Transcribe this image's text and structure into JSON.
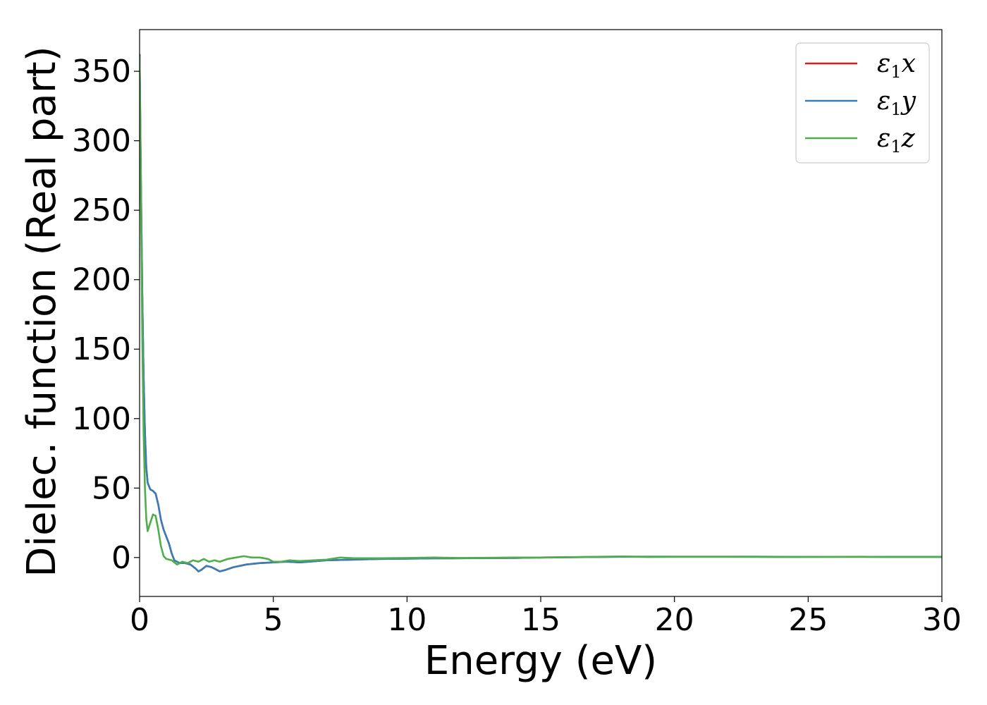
{
  "chart_data": {
    "type": "line",
    "title": "",
    "xlabel": "Energy (eV)",
    "ylabel": "Dielec. function (Real part)",
    "xlim": [
      0,
      30
    ],
    "ylim": [
      -28,
      380
    ],
    "xticks": [
      0,
      5,
      10,
      15,
      20,
      25,
      30
    ],
    "yticks": [
      0,
      50,
      100,
      150,
      200,
      250,
      300,
      350
    ],
    "grid": false,
    "legend_position": "top-right",
    "series": [
      {
        "name": "ε1x",
        "legend_symbol": "ε",
        "legend_sub": "1",
        "legend_suffix": "x",
        "color": "#e41a1c",
        "x": [
          0,
          0.05,
          0.1,
          0.15,
          0.2,
          0.25,
          0.3,
          0.4,
          0.5,
          0.6,
          0.7,
          0.8,
          0.9,
          1.0,
          1.1,
          1.2,
          1.3,
          1.4,
          1.5,
          1.7,
          1.9,
          2.1,
          2.2,
          2.3,
          2.5,
          2.7,
          2.9,
          3.0,
          3.2,
          3.5,
          4.0,
          4.5,
          5.0,
          5.5,
          6.0,
          7.0,
          8.0,
          9.0,
          10.0,
          11.0,
          12.0,
          13.0,
          14.0,
          15.0,
          16.0,
          17.0,
          18.0,
          19.0,
          20.0,
          21.0,
          22.0,
          23.0,
          24.0,
          25.0,
          26.0,
          27.0,
          28.0,
          29.0,
          30.0
        ],
        "y": [
          362,
          270,
          190,
          130,
          90,
          65,
          54,
          49,
          48,
          46,
          38,
          27,
          20,
          15,
          10,
          3,
          -2,
          -3,
          -4,
          -4,
          -5,
          -8,
          -10,
          -9,
          -6,
          -7,
          -9,
          -10,
          -9,
          -7,
          -5,
          -4,
          -3.5,
          -3,
          -3.5,
          -2,
          -1.5,
          -1,
          -0.8,
          -0.6,
          -0.5,
          -0.4,
          -0.3,
          0,
          0.2,
          0.4,
          0.6,
          0.6,
          0.6,
          0.6,
          0.6,
          0.6,
          0.5,
          0.5,
          0.5,
          0.5,
          0.5,
          0.5,
          0.5
        ]
      },
      {
        "name": "ε1y",
        "legend_symbol": "ε",
        "legend_sub": "1",
        "legend_suffix": "y",
        "color": "#377eb8",
        "x": [
          0,
          0.05,
          0.1,
          0.15,
          0.2,
          0.25,
          0.3,
          0.4,
          0.5,
          0.6,
          0.7,
          0.8,
          0.9,
          1.0,
          1.1,
          1.2,
          1.3,
          1.4,
          1.5,
          1.7,
          1.9,
          2.1,
          2.2,
          2.3,
          2.5,
          2.7,
          2.9,
          3.0,
          3.2,
          3.5,
          4.0,
          4.5,
          5.0,
          5.5,
          6.0,
          7.0,
          8.0,
          9.0,
          10.0,
          11.0,
          12.0,
          13.0,
          14.0,
          15.0,
          16.0,
          17.0,
          18.0,
          19.0,
          20.0,
          21.0,
          22.0,
          23.0,
          24.0,
          25.0,
          26.0,
          27.0,
          28.0,
          29.0,
          30.0
        ],
        "y": [
          362,
          270,
          190,
          130,
          90,
          65,
          54,
          49,
          48,
          46,
          38,
          27,
          20,
          15,
          10,
          3,
          -2,
          -3,
          -4,
          -4,
          -5,
          -8,
          -10,
          -9,
          -6,
          -7,
          -9,
          -10,
          -9,
          -7,
          -5,
          -4,
          -3.5,
          -3,
          -3.5,
          -2,
          -1.5,
          -1,
          -0.8,
          -0.6,
          -0.5,
          -0.4,
          -0.3,
          0,
          0.2,
          0.4,
          0.6,
          0.6,
          0.6,
          0.6,
          0.6,
          0.6,
          0.5,
          0.5,
          0.5,
          0.5,
          0.5,
          0.5,
          0.5
        ]
      },
      {
        "name": "ε1z",
        "legend_symbol": "ε",
        "legend_sub": "1",
        "legend_suffix": "z",
        "color": "#4daf4a",
        "x": [
          0,
          0.05,
          0.1,
          0.15,
          0.2,
          0.25,
          0.3,
          0.4,
          0.5,
          0.6,
          0.7,
          0.8,
          0.9,
          1.0,
          1.2,
          1.4,
          1.6,
          1.8,
          2.0,
          2.2,
          2.4,
          2.6,
          2.8,
          3.0,
          3.3,
          3.6,
          3.9,
          4.2,
          4.5,
          4.8,
          5.0,
          5.3,
          5.6,
          6.0,
          6.5,
          7.0,
          7.5,
          8.0,
          9.0,
          10.0,
          11.0,
          12.0,
          13.0,
          14.0,
          15.0,
          16.0,
          17.0,
          18.0,
          19.0,
          20.0,
          22.0,
          24.0,
          26.0,
          27.0,
          28.0,
          30.0
        ],
        "y": [
          360,
          260,
          160,
          90,
          50,
          28,
          19,
          25,
          31,
          30,
          20,
          8,
          1,
          -1,
          -2,
          -5,
          -3,
          -4,
          -2,
          -3,
          -1,
          -3,
          -2,
          -3,
          -1,
          0,
          1,
          0,
          0,
          -1,
          -3,
          -3,
          -2,
          -2.5,
          -2,
          -1.5,
          0,
          -0.5,
          -0.5,
          -0.3,
          0,
          -0.3,
          -0.2,
          0,
          0,
          0.2,
          0.5,
          0.8,
          0.4,
          0.5,
          0.5,
          0.4,
          0.5,
          0.6,
          0.4,
          0.4
        ]
      }
    ]
  }
}
